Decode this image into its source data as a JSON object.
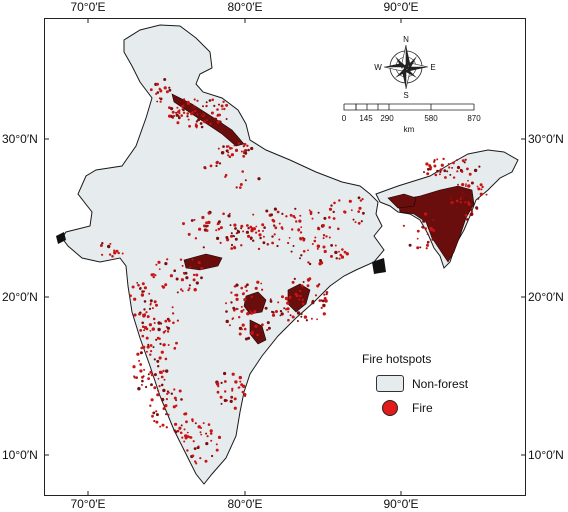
{
  "graticule": {
    "longitudes": [
      "70°0′E",
      "80°0′E",
      "90°0′E"
    ],
    "latitudes": [
      "30°0′N",
      "20°0′N",
      "10°0′N"
    ]
  },
  "legend": {
    "title": "Fire hotspots",
    "items": [
      {
        "label": "Non-forest",
        "color": "#e6ecee"
      },
      {
        "label": "Fire",
        "color": "#e31a1c"
      }
    ]
  },
  "scale_bar": {
    "ticks": [
      "0",
      "145",
      "290",
      "580",
      "870"
    ],
    "unit": "km"
  },
  "compass": {
    "n": "N",
    "s": "S",
    "e": "E",
    "w": "W"
  },
  "colors": {
    "land": "#e6ecee",
    "fire": "#c81414",
    "fire_dark": "#5a0b0b",
    "outline": "#1a1a1a"
  }
}
